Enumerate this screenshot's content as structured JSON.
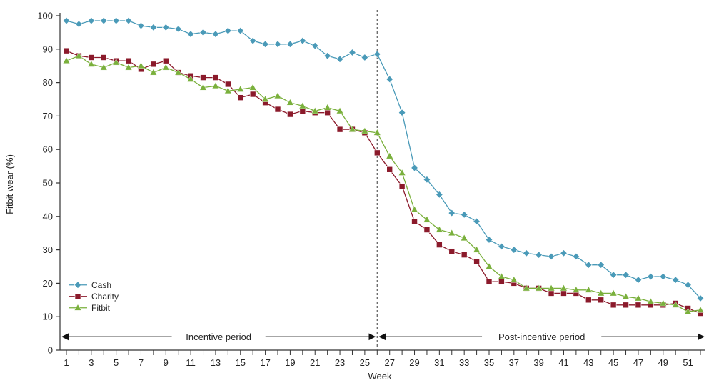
{
  "chart_data": {
    "type": "line",
    "title": "",
    "xlabel": "Week",
    "ylabel": "Fitbit wear (%)",
    "ylim": [
      0,
      100
    ],
    "xlim": [
      1,
      52
    ],
    "yticks": [
      0,
      10,
      20,
      30,
      40,
      50,
      60,
      70,
      80,
      90,
      100
    ],
    "xtick_labels": [
      1,
      3,
      5,
      7,
      9,
      11,
      13,
      15,
      17,
      19,
      21,
      23,
      25,
      27,
      29,
      31,
      33,
      35,
      37,
      39,
      41,
      43,
      45,
      47,
      49,
      51
    ],
    "grid": false,
    "legend_position": "bottom-left",
    "divider_week": 26,
    "periods": [
      {
        "label": "Incentive period",
        "start_week": 1,
        "end_week": 26
      },
      {
        "label": "Post-incentive period",
        "start_week": 26,
        "end_week": 52
      }
    ],
    "x": [
      1,
      2,
      3,
      4,
      5,
      6,
      7,
      8,
      9,
      10,
      11,
      12,
      13,
      14,
      15,
      16,
      17,
      18,
      19,
      20,
      21,
      22,
      23,
      24,
      25,
      26,
      27,
      28,
      29,
      30,
      31,
      32,
      33,
      34,
      35,
      36,
      37,
      38,
      39,
      40,
      41,
      42,
      43,
      44,
      45,
      46,
      47,
      48,
      49,
      50,
      51,
      52
    ],
    "series": [
      {
        "name": "Cash",
        "color": "#4a9ab8",
        "marker": "diamond",
        "values": [
          98.5,
          97.5,
          98.5,
          98.5,
          98.5,
          98.5,
          97,
          96.5,
          96.5,
          96,
          94.5,
          95,
          94.5,
          95.5,
          95.5,
          92.5,
          91.5,
          91.5,
          91.5,
          92.5,
          91,
          88,
          87,
          89,
          87.5,
          88.5,
          81,
          71,
          54.5,
          51,
          46.5,
          41,
          40.5,
          38.5,
          33,
          31,
          30,
          29,
          28.5,
          28,
          29,
          28,
          25.5,
          25.5,
          22.5,
          22.5,
          21,
          22,
          22,
          21,
          19.5,
          15.5
        ]
      },
      {
        "name": "Charity",
        "color": "#8b1a2b",
        "marker": "square",
        "values": [
          89.5,
          88,
          87.5,
          87.5,
          86.5,
          86.5,
          84,
          85.5,
          86.5,
          83,
          82,
          81.5,
          81.5,
          79.5,
          75.5,
          76.5,
          74,
          72,
          70.5,
          71.5,
          71,
          71,
          66,
          66,
          65,
          59,
          54,
          49,
          38.5,
          36,
          31.5,
          29.5,
          28.5,
          26.5,
          20.5,
          20.5,
          20,
          18.5,
          18.5,
          17,
          17,
          17,
          15,
          15,
          13.5,
          13.5,
          13.5,
          13.5,
          13.5,
          14,
          12.5,
          11
        ]
      },
      {
        "name": "Fitbit",
        "color": "#7ab03c",
        "marker": "triangle",
        "values": [
          86.5,
          88,
          85.5,
          84.5,
          86,
          84.5,
          85,
          83,
          84.5,
          83,
          81,
          78.5,
          79,
          77.5,
          78,
          78.5,
          75,
          76,
          74,
          73,
          71.5,
          72.5,
          71.5,
          66,
          65.5,
          65,
          58,
          53,
          42,
          39,
          36,
          35,
          33.5,
          30,
          25,
          22,
          21,
          18.5,
          18.5,
          18.5,
          18.5,
          18,
          18,
          17,
          17,
          16,
          15.5,
          14.5,
          14,
          13.5,
          11.5,
          12
        ]
      }
    ]
  }
}
